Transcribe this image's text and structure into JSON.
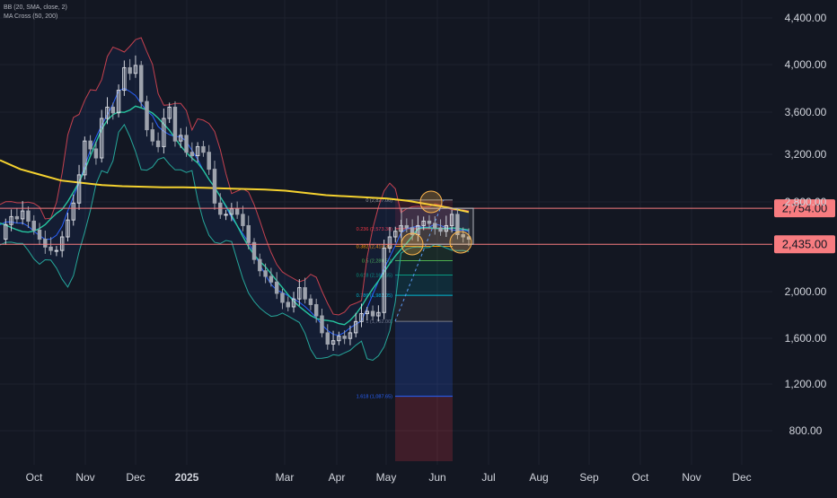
{
  "indicators": {
    "bb": "BB (20, SMA, close, 2)",
    "ma_cross": "MA Cross (50, 200)"
  },
  "colors": {
    "background": "#131722",
    "grid": "#1e222d",
    "axis_text": "#d1d4dc",
    "candle_up": "#d1d4dc",
    "candle_down": "#9ea3ad",
    "bb_upper": "#c4414f",
    "bb_lower": "#26a69a",
    "bb_basis": "#2962ff",
    "ma50": "#26c6a0",
    "ma200": "#f5d22f",
    "hline": "#f77c80",
    "price_label_bg": "#f77c80",
    "price_label_text": "#131722",
    "ellipse": "#ffb74d"
  },
  "chart_data": {
    "type": "candlestick",
    "ylim": [
      480,
      4600
    ],
    "y_ticks": [
      "4,400.00",
      "4,000.00",
      "3,600.00",
      "3,200.00",
      "2,800.00",
      "2,000.00",
      "1,600.00",
      "1,200.00",
      "800.00"
    ],
    "x_ticks": [
      "Oct",
      "Nov",
      "Dec",
      "2025",
      "Mar",
      "Apr",
      "May",
      "Jun",
      "Jul",
      "Aug",
      "Sep",
      "Oct",
      "Nov",
      "Dec"
    ],
    "price_levels": [
      {
        "label": "2,754.00",
        "value": 2754
      },
      {
        "label": "2,435.00",
        "value": 2435
      }
    ],
    "fibonacci": [
      {
        "label": "0 (2,827.00)",
        "value": 2827,
        "color": "#9598a1"
      },
      {
        "label": "0.236 (2,573.30)",
        "value": 2573.3,
        "color": "#f23645"
      },
      {
        "label": "0.382 (2,416.35)",
        "value": 2416.35,
        "color": "#ff9800"
      },
      {
        "label": "0.5 (2,289.50)",
        "value": 2289.5,
        "color": "#4caf50"
      },
      {
        "label": "0.618 (2,162.65)",
        "value": 2162.65,
        "color": "#089981"
      },
      {
        "label": "0.786 (1,982.05)",
        "value": 1982.05,
        "color": "#00bcd4"
      },
      {
        "label": "1 (1,752.00)",
        "value": 1752,
        "color": "#787b86"
      },
      {
        "label": "1.618 (1,087.65)",
        "value": 1087.65,
        "color": "#2962ff"
      }
    ],
    "series": [
      {
        "name": "Price",
        "points": [
          [
            0,
            2480
          ],
          [
            1,
            2610
          ],
          [
            2,
            2680
          ],
          [
            3,
            2660
          ],
          [
            4,
            2730
          ],
          [
            5,
            2640
          ],
          [
            6,
            2560
          ],
          [
            7,
            2480
          ],
          [
            8,
            2410
          ],
          [
            9,
            2380
          ],
          [
            10,
            2380
          ],
          [
            11,
            2500
          ],
          [
            12,
            2650
          ],
          [
            13,
            2800
          ],
          [
            14,
            3050
          ],
          [
            15,
            3350
          ],
          [
            16,
            3280
          ],
          [
            17,
            3200
          ],
          [
            18,
            3550
          ],
          [
            19,
            3650
          ],
          [
            20,
            3600
          ],
          [
            21,
            3800
          ],
          [
            22,
            4000
          ],
          [
            23,
            3950
          ],
          [
            24,
            4020
          ],
          [
            25,
            3700
          ],
          [
            26,
            3450
          ],
          [
            27,
            3350
          ],
          [
            28,
            3300
          ],
          [
            29,
            3550
          ],
          [
            30,
            3650
          ],
          [
            31,
            3350
          ],
          [
            32,
            3400
          ],
          [
            33,
            3250
          ],
          [
            34,
            3220
          ],
          [
            35,
            3300
          ],
          [
            36,
            3250
          ],
          [
            37,
            3100
          ],
          [
            38,
            2800
          ],
          [
            39,
            2700
          ],
          [
            40,
            2700
          ],
          [
            41,
            2750
          ],
          [
            42,
            2700
          ],
          [
            43,
            2600
          ],
          [
            44,
            2450
          ],
          [
            45,
            2300
          ],
          [
            46,
            2200
          ],
          [
            47,
            2150
          ],
          [
            48,
            2100
          ],
          [
            49,
            2000
          ],
          [
            50,
            1920
          ],
          [
            51,
            1880
          ],
          [
            52,
            1950
          ],
          [
            53,
            2050
          ],
          [
            54,
            1950
          ],
          [
            55,
            1900
          ],
          [
            56,
            1800
          ],
          [
            57,
            1650
          ],
          [
            58,
            1550
          ],
          [
            59,
            1580
          ],
          [
            60,
            1620
          ],
          [
            61,
            1600
          ],
          [
            62,
            1650
          ],
          [
            63,
            1750
          ],
          [
            64,
            1820
          ],
          [
            65,
            1840
          ],
          [
            66,
            1800
          ],
          [
            67,
            1830
          ],
          [
            68,
            2400
          ],
          [
            69,
            2500
          ],
          [
            70,
            2550
          ],
          [
            71,
            2600
          ],
          [
            72,
            2580
          ],
          [
            73,
            2520
          ],
          [
            74,
            2600
          ],
          [
            75,
            2640
          ],
          [
            76,
            2620
          ],
          [
            77,
            2580
          ],
          [
            78,
            2550
          ],
          [
            79,
            2600
          ],
          [
            80,
            2700
          ],
          [
            81,
            2520
          ],
          [
            82,
            2500
          ],
          [
            83,
            2480
          ]
        ]
      }
    ]
  }
}
